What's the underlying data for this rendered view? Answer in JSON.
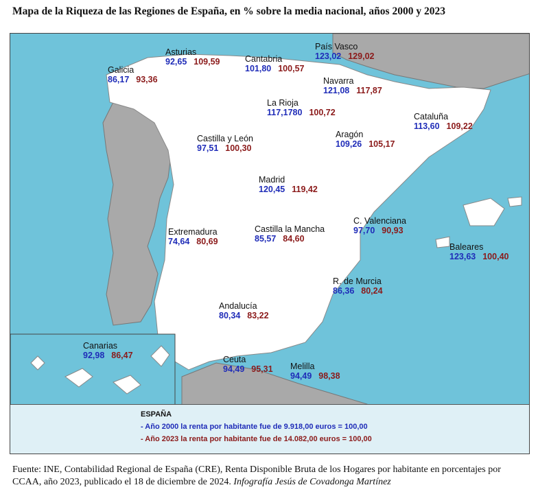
{
  "title": "Mapa de la Riqueza de las Regiones de España, en % sobre la media nacional, años 2000 y 2023",
  "regions": {
    "galicia": {
      "name": "Galicia",
      "v2000": "86,17",
      "v2023": "93,36"
    },
    "asturias": {
      "name": "Asturias",
      "v2000": "92,65",
      "v2023": "109,59"
    },
    "cantabria": {
      "name": "Cantabria",
      "v2000": "101,80",
      "v2023": "100,57"
    },
    "paisvasco": {
      "name": "País Vasco",
      "v2000": "123,02",
      "v2023": "129,02"
    },
    "navarra": {
      "name": "Navarra",
      "v2000": "121,08",
      "v2023": "117,87"
    },
    "larioja": {
      "name": "La Rioja",
      "v2000": "117,1780",
      "v2023": "100,72"
    },
    "cataluna": {
      "name": "Cataluña",
      "v2000": "113,60",
      "v2023": "109,22"
    },
    "aragon": {
      "name": "Aragón",
      "v2000": "109,26",
      "v2023": "105,17"
    },
    "cyl": {
      "name": "Castilla y León",
      "v2000": "97,51",
      "v2023": "100,30"
    },
    "madrid": {
      "name": "Madrid",
      "v2000": "120,45",
      "v2023": "119,42"
    },
    "extremadura": {
      "name": "Extremadura",
      "v2000": "74,64",
      "v2023": "80,69"
    },
    "clm": {
      "name": "Castilla la Mancha",
      "v2000": "85,57",
      "v2023": "84,60"
    },
    "valenciana": {
      "name": "C. Valenciana",
      "v2000": "97,70",
      "v2023": "90,93"
    },
    "baleares": {
      "name": "Baleares",
      "v2000": "123,63",
      "v2023": "100,40"
    },
    "murcia": {
      "name": "R. de Murcia",
      "v2000": "86,36",
      "v2023": "80,24"
    },
    "andalucia": {
      "name": "Andalucía",
      "v2000": "80,34",
      "v2023": "83,22"
    },
    "canarias": {
      "name": "Canarias",
      "v2000": "92,98",
      "v2023": "86,47"
    },
    "ceuta": {
      "name": "Ceuta",
      "v2000": "94,49",
      "v2023": "95,31"
    },
    "melilla": {
      "name": "Melilla",
      "v2000": "94,49",
      "v2023": "98,38"
    }
  },
  "legend": {
    "title": "ESPAÑA",
    "line2000": "- Año 2000 la renta por habitante fue de     9.918,00 euros = 100,00",
    "line2023": "- Año 2023 la renta por habitante fue de 14.082,00 euros = 100,00"
  },
  "source": {
    "text": "Fuente: INE, Contabilidad Regional de España (CRE), Renta Disponible Bruta de los Hogares por habitante en porcentajes por CCAA, año 2023, publicado el 18 de diciembre de 2024. ",
    "credit": "Infografía Jesús de Covadonga Martínez"
  },
  "colors": {
    "sea": "#6fc3da",
    "spain": "#ffffff",
    "neighbors": "#a9a9a9",
    "v2000": "#1f2cb8",
    "v2023": "#8b1a1a"
  }
}
